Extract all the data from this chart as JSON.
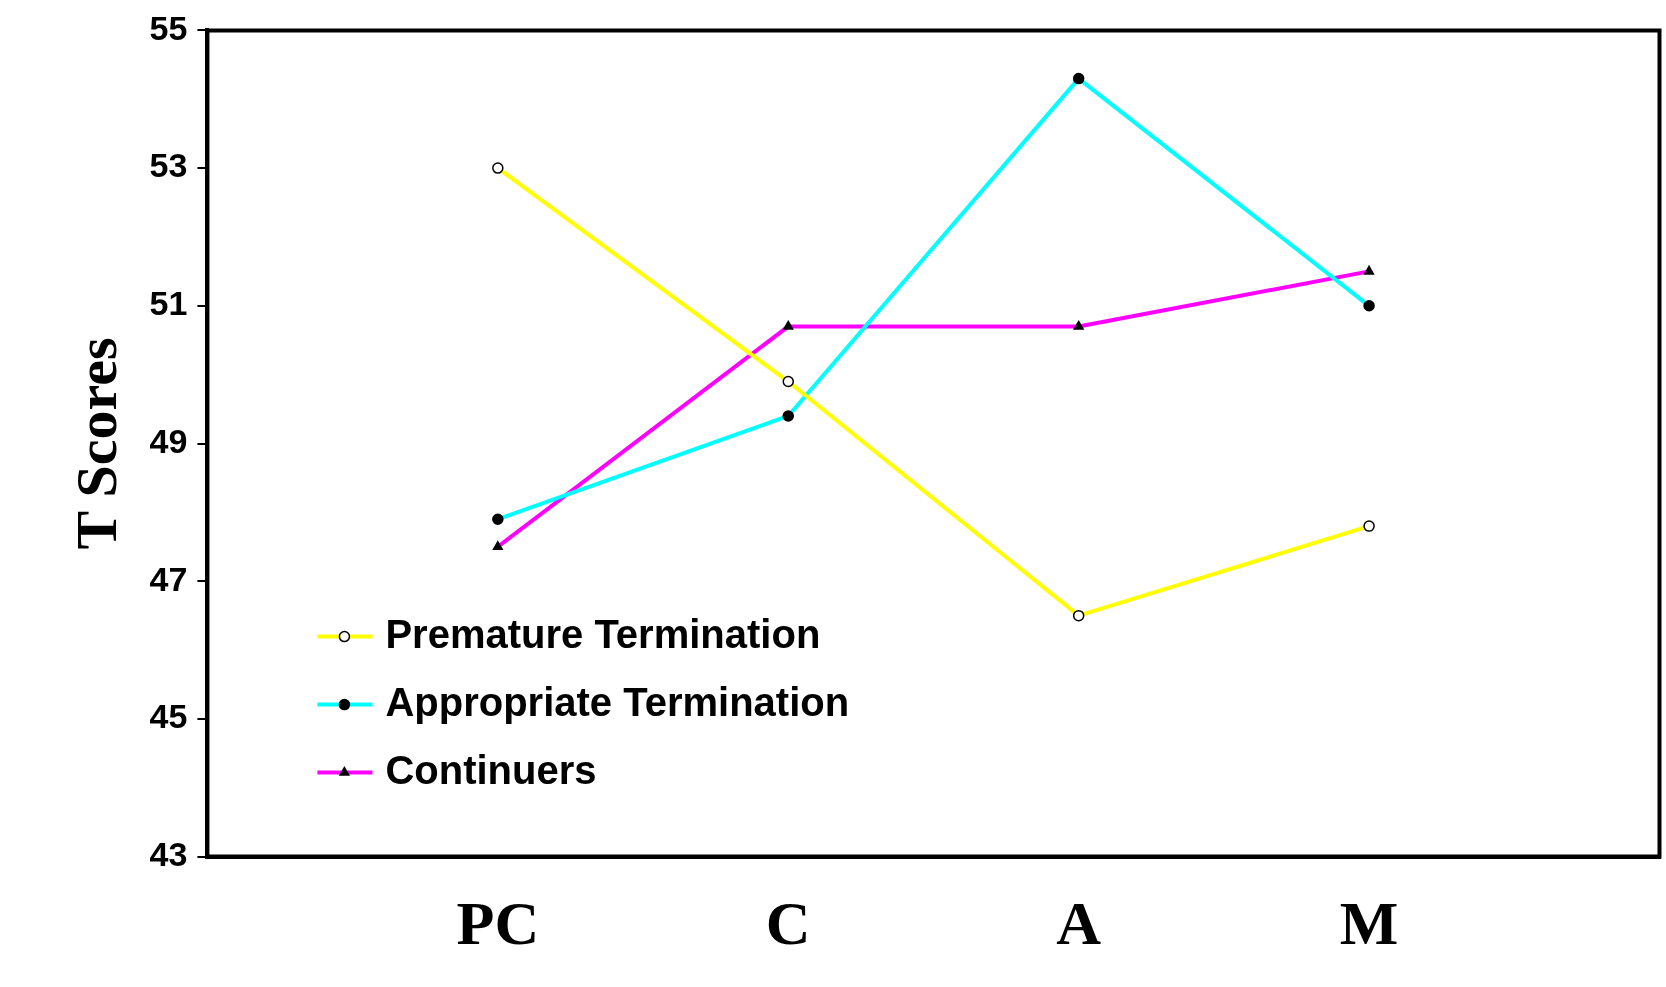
{
  "chart_data": {
    "type": "line",
    "ylabel": "T Scores",
    "categories": [
      "PC",
      "C",
      "A",
      "M"
    ],
    "series": [
      {
        "name": "Premature Termination",
        "color": "#ffff00",
        "marker": "circle-open",
        "values": [
          53.0,
          49.9,
          46.5,
          47.8
        ]
      },
      {
        "name": "Appropriate Termination",
        "color": "#00ffff",
        "marker": "circle",
        "values": [
          47.9,
          49.4,
          54.3,
          51.0
        ]
      },
      {
        "name": "Continuers",
        "color": "#ff00ff",
        "marker": "triangle",
        "values": [
          47.5,
          50.7,
          50.7,
          51.5
        ]
      }
    ],
    "ylim": [
      43,
      55
    ],
    "yticks": [
      43,
      45,
      47,
      49,
      51,
      53,
      55
    ],
    "grid": false,
    "legend": "bottom left",
    "line_style": "solid"
  }
}
